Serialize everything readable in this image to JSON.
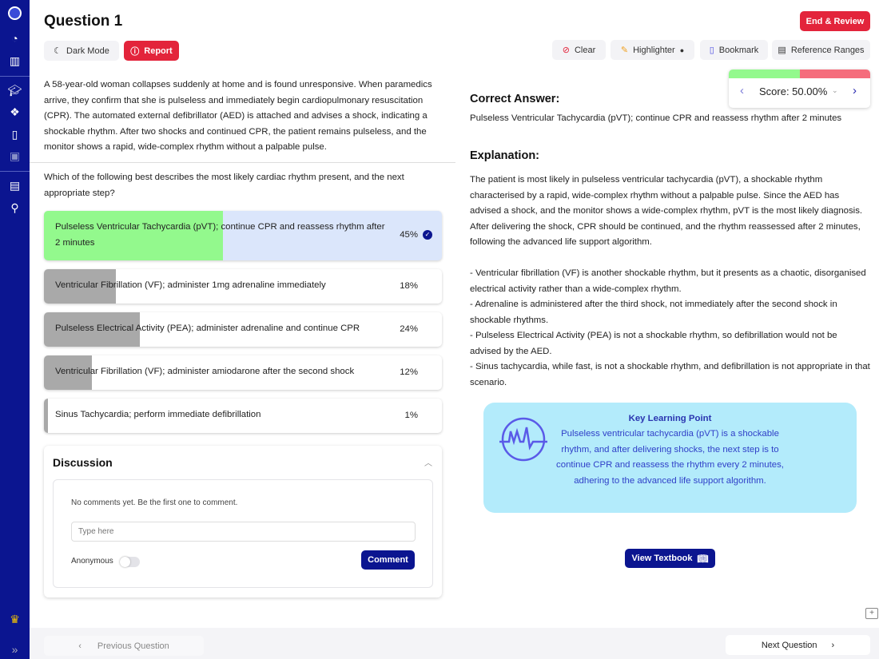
{
  "sidebar": {
    "icons": [
      "logo-icon",
      "pie-chart-icon",
      "bar-chart-icon",
      "graduation-cap-icon",
      "cards-icon",
      "bookmark-icon",
      "grade-icon",
      "message-icon",
      "presentation-icon",
      "crown-icon",
      "expand-icon"
    ]
  },
  "header": {
    "title": "Question 1",
    "dark_mode": "Dark Mode",
    "report": "Report",
    "end_review": "End & Review",
    "clear": "Clear",
    "highlighter": "Highlighter",
    "bookmark": "Bookmark",
    "reference_ranges": "Reference Ranges"
  },
  "score": {
    "label": "Score: 50.00%",
    "value": 50,
    "correct_color": "#93f98d",
    "wrong_color": "#f56d7c"
  },
  "question": {
    "stem": "A 58-year-old woman collapses suddenly at home and is found unresponsive. When paramedics arrive, they confirm that she is pulseless and immediately begin cardiopulmonary resuscitation (CPR). The automated external defibrillator (AED) is attached and advises a shock, indicating a shockable rhythm. After two shocks and continued CPR, the patient remains pulseless, and the monitor shows a rapid, wide-complex rhythm without a palpable pulse.",
    "prompt": "Which of the following best describes the most likely cardiac rhythm present, and the next appropriate step?"
  },
  "options": [
    {
      "label": "Pulseless Ventricular Tachycardia (pVT); continue CPR and reassess rhythm after 2 minutes",
      "percent": "45%",
      "value": 45,
      "correct": true
    },
    {
      "label": "Ventricular Fibrillation (VF); administer 1mg adrenaline immediately",
      "percent": "18%",
      "value": 18
    },
    {
      "label": "Pulseless Electrical Activity (PEA); administer adrenaline and continue CPR",
      "percent": "24%",
      "value": 24
    },
    {
      "label": "Ventricular Fibrillation (VF); administer amiodarone after the second shock",
      "percent": "12%",
      "value": 12
    },
    {
      "label": "Sinus Tachycardia; perform immediate defibrillation",
      "percent": "1%",
      "value": 1
    }
  ],
  "discussion": {
    "title": "Discussion",
    "empty": "No comments yet. Be the first one to comment.",
    "placeholder": "Type here",
    "anonymous": "Anonymous",
    "comment": "Comment"
  },
  "answer": {
    "title": "Correct Answer:",
    "text": "Pulseless Ventricular Tachycardia (pVT); continue CPR and reassess rhythm after 2 minutes"
  },
  "explanation": {
    "title": "Explanation:",
    "paragraphs": [
      "The patient is most likely in pulseless ventricular tachycardia (pVT), a shockable rhythm characterised by a rapid, wide-complex rhythm without a palpable pulse. Since the AED has advised a shock, and the monitor shows a wide-complex rhythm, pVT is the most likely diagnosis. After delivering the shock, CPR should be continued, and the rhythm reassessed after 2 minutes, following the advanced life support algorithm.",
      "- Ventricular fibrillation (VF) is another shockable rhythm, but it presents as a chaotic, disorganised electrical activity rather than a wide-complex rhythm.",
      "- Adrenaline is administered after the third shock, not immediately after the second shock in shockable rhythms.",
      "- Pulseless Electrical Activity (PEA) is not a shockable rhythm, so defibrillation would not be advised by the AED.",
      "- Sinus tachycardia, while fast, is not a shockable rhythm, and defibrillation is not appropriate in that scenario."
    ]
  },
  "klp": {
    "title": "Key Learning Point",
    "text": "Pulseless ventricular tachycardia (pVT) is a shockable rhythm, and after delivering shocks, the next step is to continue CPR and reassess the rhythm every 2 minutes, adhering to the advanced life support algorithm.",
    "logo": "MLA MED"
  },
  "view_textbook": "View Textbook",
  "nav": {
    "previous": "Previous Question",
    "next": "Next Question"
  }
}
